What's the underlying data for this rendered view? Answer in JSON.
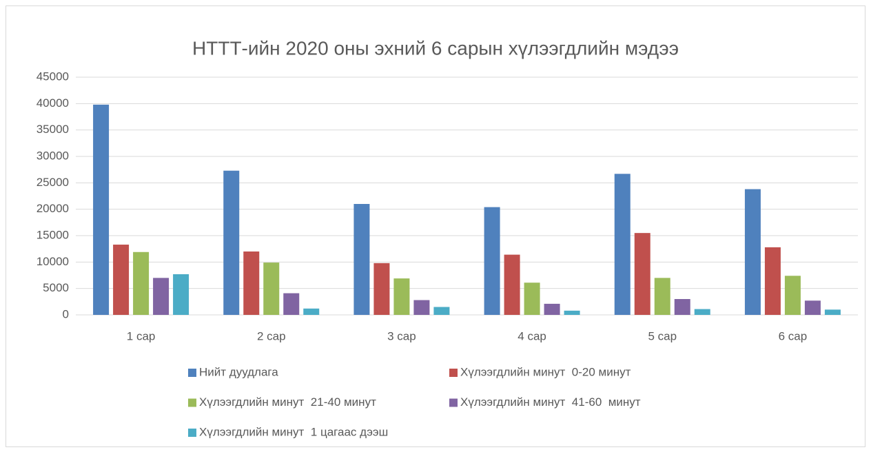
{
  "chart_data": {
    "type": "bar",
    "title": "НТТТ-ийн 2020 оны эхний 6 сарын хүлээгдлийн мэдээ",
    "categories": [
      "1 сар",
      "2 сар",
      "3 сар",
      "4 сар",
      "5 сар",
      "6 сар"
    ],
    "series": [
      {
        "name": "Нийт дуудлага",
        "color": "#4f81bd",
        "values": [
          39800,
          27300,
          21000,
          20400,
          26700,
          23800
        ]
      },
      {
        "name": "Хүлээгдлийн минут  0-20 минут",
        "color": "#c0504d",
        "values": [
          13300,
          12000,
          9800,
          11400,
          15500,
          12800
        ]
      },
      {
        "name": "Хүлээгдлийн минут  21-40 минут",
        "color": "#9bbb59",
        "values": [
          11900,
          9900,
          6900,
          6100,
          7000,
          7400
        ]
      },
      {
        "name": "Хүлээгдлийн минут  41-60  минут",
        "color": "#8064a2",
        "values": [
          7000,
          4100,
          2800,
          2100,
          3000,
          2700
        ]
      },
      {
        "name": "Хүлээгдлийн минут  1 цагаас дээш",
        "color": "#4bacc6",
        "values": [
          7700,
          1200,
          1500,
          800,
          1100,
          1000
        ]
      }
    ],
    "ylim": [
      0,
      45000
    ],
    "yticks": [
      0,
      5000,
      10000,
      15000,
      20000,
      25000,
      30000,
      35000,
      40000,
      45000
    ],
    "grid": true,
    "legend": "bottom"
  }
}
